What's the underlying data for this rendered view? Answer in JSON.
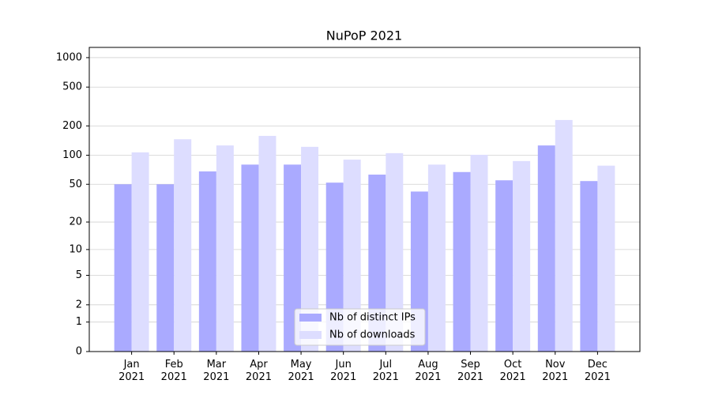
{
  "chart_data": {
    "type": "bar",
    "title": "NuPoP 2021",
    "categories": [
      "Jan\n2021",
      "Feb\n2021",
      "Mar\n2021",
      "Apr\n2021",
      "May\n2021",
      "Jun\n2021",
      "Jul\n2021",
      "Aug\n2021",
      "Sep\n2021",
      "Oct\n2021",
      "Nov\n2021",
      "Dec\n2021"
    ],
    "series": [
      {
        "name": "Nb of distinct IPs",
        "color": "#aaaaff",
        "values": [
          50,
          50,
          68,
          80,
          80,
          52,
          63,
          42,
          67,
          55,
          126,
          54
        ]
      },
      {
        "name": "Nb of downloads",
        "color": "#ddddff",
        "values": [
          107,
          146,
          126,
          158,
          122,
          90,
          105,
          80,
          101,
          87,
          230,
          78
        ]
      }
    ],
    "yscale": "log1p",
    "ylim": [
      0,
      1272
    ],
    "yticks": [
      0,
      1,
      2,
      5,
      10,
      20,
      50,
      100,
      200,
      500,
      1000
    ],
    "grid": true,
    "legend": "lower center"
  }
}
